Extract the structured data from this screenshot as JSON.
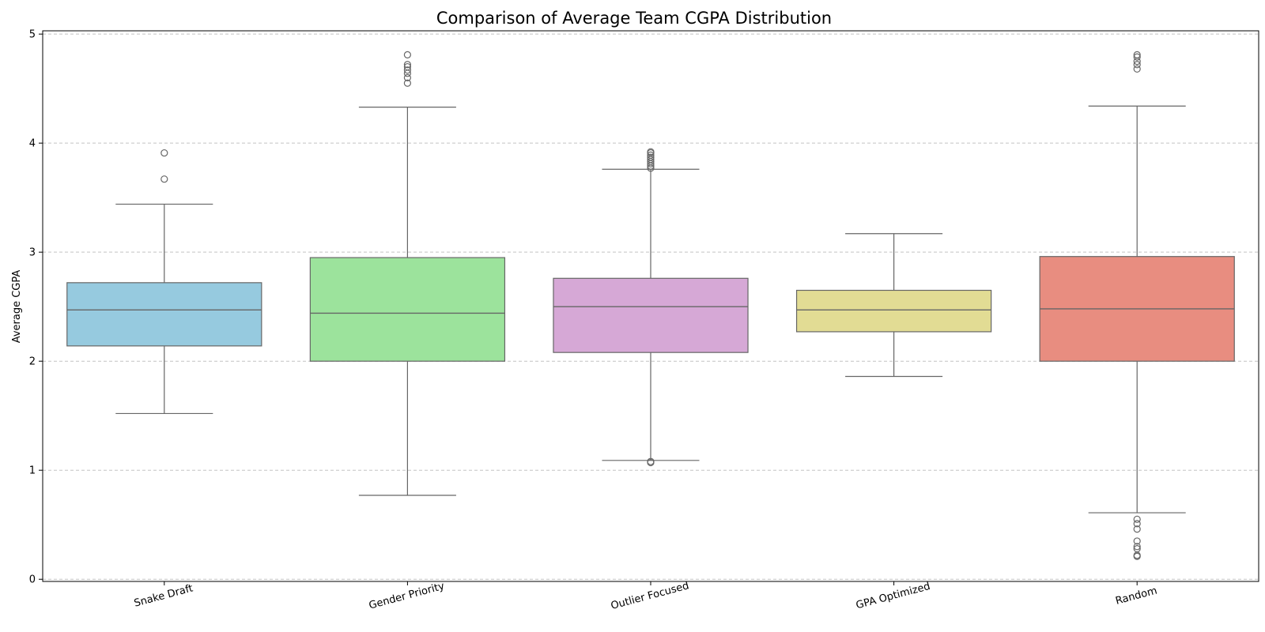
{
  "chart_data": {
    "type": "box",
    "title": "Comparison of Average Team CGPA Distribution",
    "xlabel": "",
    "ylabel": "Average CGPA",
    "ylim": [
      -0.02,
      5.03
    ],
    "yticks": [
      0,
      1,
      2,
      3,
      4,
      5
    ],
    "grid": "y-dashed",
    "categories": [
      "Snake Draft",
      "Gender Priority",
      "Outlier Focused",
      "GPA Optimized",
      "Random"
    ],
    "boxes": [
      {
        "category": "Snake Draft",
        "color": "#96cadf",
        "whisker_low": 1.52,
        "q1": 2.14,
        "median": 2.47,
        "q3": 2.72,
        "whisker_high": 3.44,
        "outliers": [
          3.67,
          3.91
        ]
      },
      {
        "category": "Gender Priority",
        "color": "#9ce39c",
        "whisker_low": 0.77,
        "q1": 2.0,
        "median": 2.44,
        "q3": 2.95,
        "whisker_high": 4.33,
        "outliers": [
          4.55,
          4.6,
          4.64,
          4.67,
          4.7,
          4.72,
          4.81
        ]
      },
      {
        "category": "Outlier Focused",
        "color": "#d6a8d6",
        "whisker_low": 1.09,
        "q1": 2.08,
        "median": 2.5,
        "q3": 2.76,
        "whisker_high": 3.76,
        "outliers": [
          1.07,
          1.08,
          3.77,
          3.79,
          3.81,
          3.83,
          3.85,
          3.87,
          3.89,
          3.91,
          3.92
        ]
      },
      {
        "category": "GPA Optimized",
        "color": "#e2dc94",
        "whisker_low": 1.86,
        "q1": 2.27,
        "median": 2.47,
        "q3": 2.65,
        "whisker_high": 3.17,
        "outliers": []
      },
      {
        "category": "Random",
        "color": "#e88d80",
        "whisker_low": 0.61,
        "q1": 2.0,
        "median": 2.48,
        "q3": 2.96,
        "whisker_high": 4.34,
        "outliers": [
          0.21,
          0.22,
          0.28,
          0.3,
          0.35,
          0.46,
          0.51,
          0.55,
          4.68,
          4.72,
          4.75,
          4.79,
          4.81
        ]
      }
    ],
    "colors": {
      "box_edge": "#666666",
      "grid": "#c4c4c4",
      "axis": "#000000"
    }
  }
}
